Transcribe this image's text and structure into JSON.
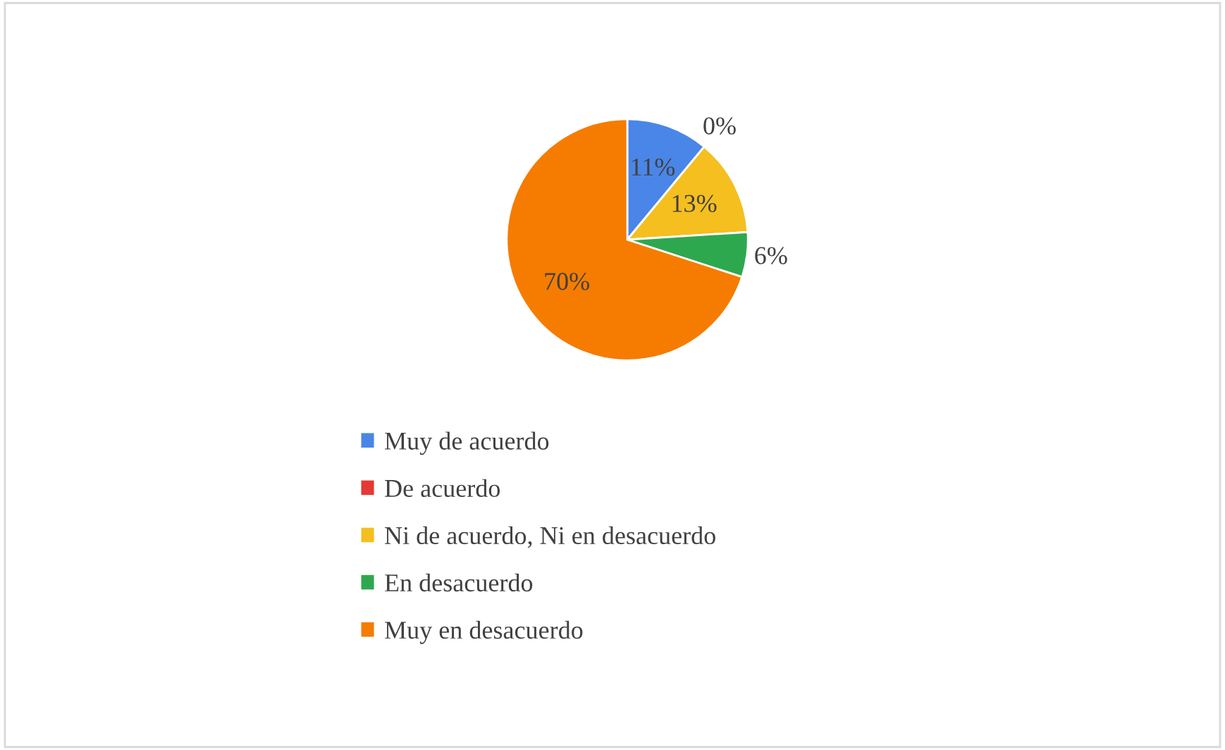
{
  "chart_data": {
    "type": "pie",
    "categories": [
      "Muy de acuerdo",
      "De acuerdo",
      "Ni de acuerdo, Ni en desacuerdo",
      "En desacuerdo",
      "Muy en desacuerdo"
    ],
    "values": [
      11,
      0,
      13,
      6,
      70
    ],
    "colors": [
      "#4a86e8",
      "#e53935",
      "#f4bf1f",
      "#2ea84f",
      "#f57c00"
    ],
    "value_labels": [
      "11%",
      "0%",
      "13%",
      "6%",
      "70%"
    ],
    "legend": "bottom"
  }
}
